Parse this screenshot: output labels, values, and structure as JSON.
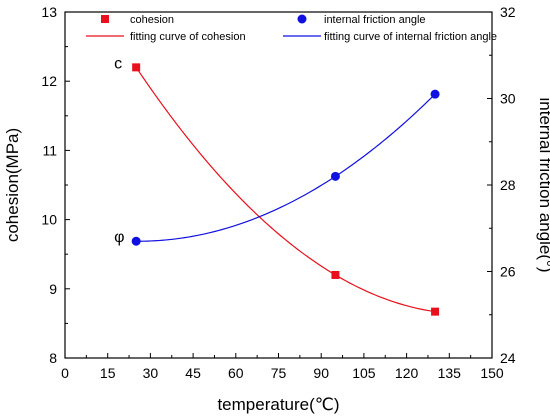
{
  "chart_data": {
    "type": "scatter",
    "xlabel": "temperature(℃)",
    "ylabel_left": "cohesion(MPa)",
    "ylabel_right": "internal friction angle(°)",
    "xlim": [
      0,
      150
    ],
    "ylim_left": [
      8,
      13
    ],
    "ylim_right": [
      24,
      32
    ],
    "x_ticks": [
      "0",
      "15",
      "30",
      "45",
      "60",
      "75",
      "90",
      "105",
      "120",
      "135",
      "150"
    ],
    "y_left_ticks": [
      "8",
      "9",
      "10",
      "11",
      "12",
      "13"
    ],
    "y_right_ticks": [
      "24",
      "26",
      "28",
      "30",
      "32"
    ],
    "grid": false,
    "legend_position": "top",
    "series": [
      {
        "name": "cohesion",
        "axis": "left",
        "marker": "square",
        "color": "#e8101c",
        "x": [
          25,
          95,
          130
        ],
        "y": [
          12.2,
          9.2,
          8.67
        ]
      },
      {
        "name": "internal friction angle",
        "axis": "right",
        "marker": "circle",
        "color": "#1010e0",
        "x": [
          25,
          95,
          130
        ],
        "y": [
          26.7,
          28.2,
          30.1
        ]
      }
    ],
    "fits": [
      {
        "name": "fitting curve of cohesion",
        "of": "cohesion",
        "color": "#e8101c"
      },
      {
        "name": "fitting curve of internal friction angle",
        "of": "internal friction angle",
        "color": "#1010e0"
      }
    ],
    "annotations": [
      {
        "text": "c",
        "series": "cohesion"
      },
      {
        "text": "φ",
        "series": "internal friction angle"
      }
    ]
  }
}
